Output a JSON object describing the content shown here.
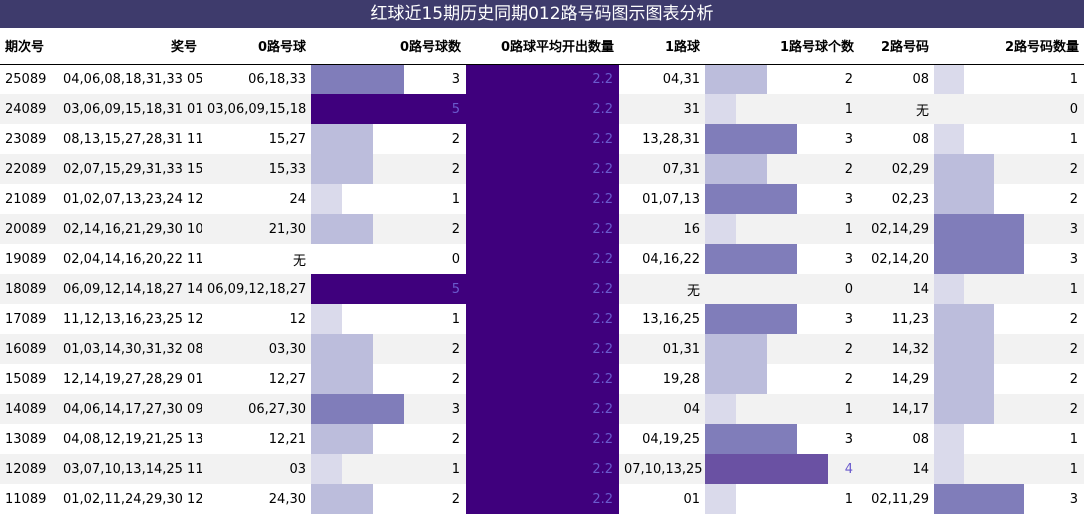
{
  "title": "红球近15期历史同期012路号码图示图表分析",
  "headers": {
    "period": "期次号",
    "numbers": "奖号",
    "r0": "0路号球",
    "r0_count": "0路号球数",
    "r0_avg": "0路球平均开出数量",
    "r1": "1路球",
    "r1_count": "1路号球个数",
    "r2": "2路号码",
    "r2_count": "2路号码数量"
  },
  "colors": {
    "scale": [
      "#ffffff",
      "#dadaeb",
      "#bcbddc",
      "#9e9ac8",
      "#807dba",
      "#6a51a3",
      "#3f007d"
    ],
    "title_bg": "#3e3b6c"
  },
  "chart_data": {
    "type": "table",
    "title": "红球近15期历史同期012路号码图示图表分析",
    "columns": [
      "期次号",
      "奖号",
      "0路号球",
      "0路号球数",
      "0路球平均开出数量",
      "1路球",
      "1路号球个数",
      "2路号码",
      "2路号码数量"
    ],
    "bar_max": 5,
    "rows": [
      {
        "period": "25089",
        "numbers": "04,06,08,18,31,33 05",
        "r0": "06,18,33",
        "r0_count": 3,
        "r0_avg": "2.2",
        "r1": "04,31",
        "r1_count": 2,
        "r2": "08",
        "r2_count": 1
      },
      {
        "period": "24089",
        "numbers": "03,06,09,15,18,31 01",
        "r0": "03,06,09,15,18",
        "r0_count": 5,
        "r0_avg": "2.2",
        "r1": "31",
        "r1_count": 1,
        "r2": "无",
        "r2_count": 0
      },
      {
        "period": "23089",
        "numbers": "08,13,15,27,28,31 11",
        "r0": "15,27",
        "r0_count": 2,
        "r0_avg": "2.2",
        "r1": "13,28,31",
        "r1_count": 3,
        "r2": "08",
        "r2_count": 1
      },
      {
        "period": "22089",
        "numbers": "02,07,15,29,31,33 15",
        "r0": "15,33",
        "r0_count": 2,
        "r0_avg": "2.2",
        "r1": "07,31",
        "r1_count": 2,
        "r2": "02,29",
        "r2_count": 2
      },
      {
        "period": "21089",
        "numbers": "01,02,07,13,23,24 12",
        "r0": "24",
        "r0_count": 1,
        "r0_avg": "2.2",
        "r1": "01,07,13",
        "r1_count": 3,
        "r2": "02,23",
        "r2_count": 2
      },
      {
        "period": "20089",
        "numbers": "02,14,16,21,29,30 10",
        "r0": "21,30",
        "r0_count": 2,
        "r0_avg": "2.2",
        "r1": "16",
        "r1_count": 1,
        "r2": "02,14,29",
        "r2_count": 3
      },
      {
        "period": "19089",
        "numbers": "02,04,14,16,20,22 11",
        "r0": "无",
        "r0_count": 0,
        "r0_avg": "2.2",
        "r1": "04,16,22",
        "r1_count": 3,
        "r2": "02,14,20",
        "r2_count": 3
      },
      {
        "period": "18089",
        "numbers": "06,09,12,14,18,27 14",
        "r0": "06,09,12,18,27",
        "r0_count": 5,
        "r0_avg": "2.2",
        "r1": "无",
        "r1_count": 0,
        "r2": "14",
        "r2_count": 1
      },
      {
        "period": "17089",
        "numbers": "11,12,13,16,23,25 12",
        "r0": "12",
        "r0_count": 1,
        "r0_avg": "2.2",
        "r1": "13,16,25",
        "r1_count": 3,
        "r2": "11,23",
        "r2_count": 2
      },
      {
        "period": "16089",
        "numbers": "01,03,14,30,31,32 08",
        "r0": "03,30",
        "r0_count": 2,
        "r0_avg": "2.2",
        "r1": "01,31",
        "r1_count": 2,
        "r2": "14,32",
        "r2_count": 2
      },
      {
        "period": "15089",
        "numbers": "12,14,19,27,28,29 01",
        "r0": "12,27",
        "r0_count": 2,
        "r0_avg": "2.2",
        "r1": "19,28",
        "r1_count": 2,
        "r2": "14,29",
        "r2_count": 2
      },
      {
        "period": "14089",
        "numbers": "04,06,14,17,27,30 09",
        "r0": "06,27,30",
        "r0_count": 3,
        "r0_avg": "2.2",
        "r1": "04",
        "r1_count": 1,
        "r2": "14,17",
        "r2_count": 2
      },
      {
        "period": "13089",
        "numbers": "04,08,12,19,21,25 13",
        "r0": "12,21",
        "r0_count": 2,
        "r0_avg": "2.2",
        "r1": "04,19,25",
        "r1_count": 3,
        "r2": "08",
        "r2_count": 1
      },
      {
        "period": "12089",
        "numbers": "03,07,10,13,14,25 11",
        "r0": "03",
        "r0_count": 1,
        "r0_avg": "2.2",
        "r1": "07,10,13,25",
        "r1_count": 4,
        "r2": "14",
        "r2_count": 1
      },
      {
        "period": "11089",
        "numbers": "01,02,11,24,29,30 12",
        "r0": "24,30",
        "r0_count": 2,
        "r0_avg": "2.2",
        "r1": "01",
        "r1_count": 1,
        "r2": "02,11,29",
        "r2_count": 3
      }
    ]
  }
}
